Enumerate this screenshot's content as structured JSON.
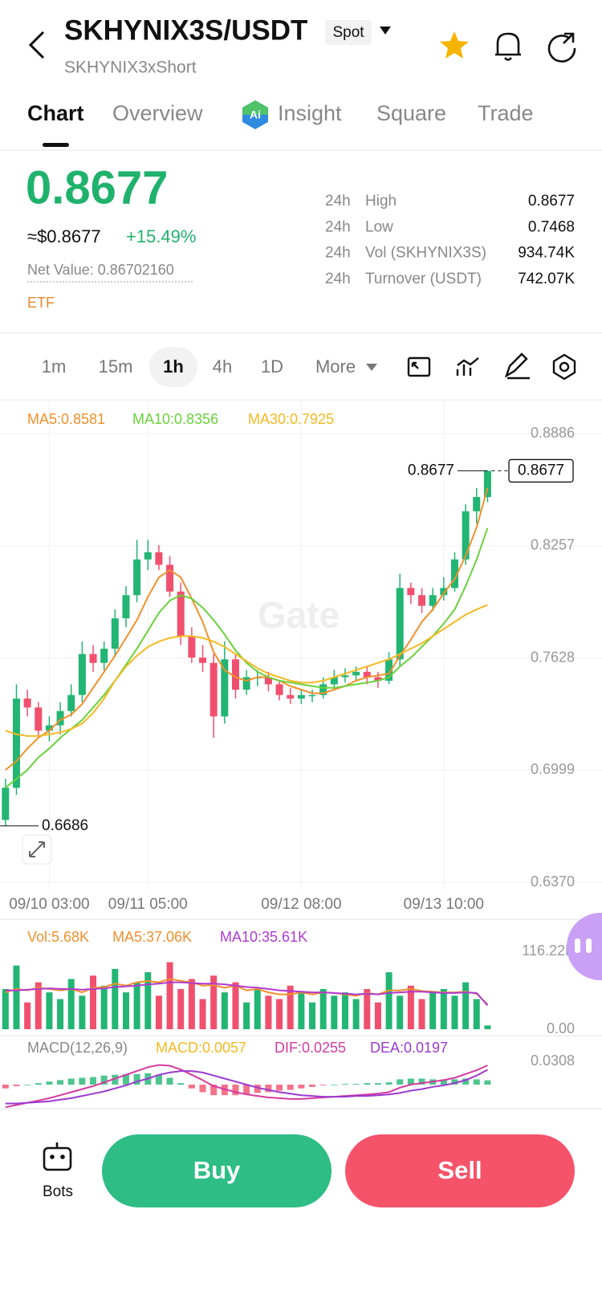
{
  "header": {
    "title": "SKHYNIX3S/USDT",
    "market": "Spot",
    "subtitle": "SKHYNIX3xShort"
  },
  "tabs": [
    "Chart",
    "Overview",
    "Insight",
    "Square",
    "Trade"
  ],
  "price": {
    "last": "0.8677",
    "usd": "≈$0.8677",
    "change": "+15.49%",
    "net_value": "Net Value: 0.86702160",
    "tag": "ETF"
  },
  "stats": [
    {
      "period": "24h",
      "label": "High",
      "value": "0.8677"
    },
    {
      "period": "24h",
      "label": "Low",
      "value": "0.7468"
    },
    {
      "period": "24h",
      "label": "Vol (SKHYNIX3S)",
      "value": "934.74K"
    },
    {
      "period": "24h",
      "label": "Turnover (USDT)",
      "value": "742.07K"
    }
  ],
  "intervals": [
    "1m",
    "15m",
    "1h",
    "4h",
    "1D",
    "More"
  ],
  "chart_data": [
    {
      "type": "candlestick",
      "watermark": "Gate",
      "up_color": "#22b573",
      "down_color": "#f0506e",
      "categories": [
        null,
        null,
        null,
        null,
        "09/10 03:00",
        null,
        null,
        null,
        null,
        null,
        null,
        null,
        null,
        "09/11 05:00",
        null,
        null,
        null,
        null,
        null,
        null,
        null,
        null,
        null,
        null,
        null,
        null,
        null,
        "09/12 08:00",
        null,
        null,
        null,
        null,
        null,
        null,
        null,
        null,
        null,
        null,
        null,
        null,
        "09/13 10:00",
        null,
        null,
        null,
        null
      ],
      "open": [
        0.672,
        0.69,
        0.74,
        0.735,
        0.722,
        0.725,
        0.733,
        0.742,
        0.765,
        0.76,
        0.768,
        0.785,
        0.798,
        0.818,
        0.822,
        0.815,
        0.8,
        0.775,
        0.763,
        0.76,
        0.73,
        0.762,
        0.745,
        0.752,
        0.752,
        0.748,
        0.742,
        0.74,
        0.742,
        0.742,
        0.748,
        0.752,
        0.753,
        0.755,
        0.752,
        0.75,
        0.762,
        0.802,
        0.798,
        0.792,
        0.798,
        0.802,
        0.818,
        0.845,
        0.853
      ],
      "high": [
        0.695,
        0.748,
        0.745,
        0.738,
        0.73,
        0.738,
        0.748,
        0.772,
        0.77,
        0.772,
        0.79,
        0.803,
        0.829,
        0.829,
        0.826,
        0.82,
        0.805,
        0.78,
        0.77,
        0.765,
        0.772,
        0.765,
        0.756,
        0.756,
        0.755,
        0.75,
        0.746,
        0.745,
        0.745,
        0.752,
        0.756,
        0.757,
        0.758,
        0.758,
        0.755,
        0.766,
        0.81,
        0.805,
        0.802,
        0.802,
        0.808,
        0.822,
        0.849,
        0.858,
        0.8677
      ],
      "low": [
        0.6686,
        0.686,
        0.73,
        0.718,
        0.716,
        0.72,
        0.73,
        0.738,
        0.755,
        0.756,
        0.764,
        0.78,
        0.794,
        0.812,
        0.812,
        0.797,
        0.77,
        0.76,
        0.755,
        0.718,
        0.726,
        0.74,
        0.742,
        0.747,
        0.744,
        0.739,
        0.737,
        0.737,
        0.738,
        0.74,
        0.745,
        0.749,
        0.75,
        0.748,
        0.746,
        0.748,
        0.758,
        0.793,
        0.788,
        0.789,
        0.795,
        0.8,
        0.815,
        0.838,
        0.85
      ],
      "close": [
        0.69,
        0.74,
        0.735,
        0.722,
        0.725,
        0.733,
        0.742,
        0.765,
        0.76,
        0.768,
        0.785,
        0.798,
        0.818,
        0.822,
        0.815,
        0.8,
        0.775,
        0.763,
        0.76,
        0.73,
        0.762,
        0.745,
        0.752,
        0.752,
        0.748,
        0.742,
        0.74,
        0.742,
        0.742,
        0.748,
        0.752,
        0.753,
        0.755,
        0.752,
        0.75,
        0.762,
        0.802,
        0.798,
        0.792,
        0.798,
        0.802,
        0.818,
        0.845,
        0.853,
        0.8677
      ],
      "series": [
        {
          "name": "MA5:0.8581",
          "color": "#f0902c",
          "values": [
            0.7,
            0.705,
            0.712,
            0.718,
            0.722,
            0.728,
            0.731,
            0.737,
            0.746,
            0.755,
            0.764,
            0.774,
            0.784,
            0.797,
            0.808,
            0.812,
            0.808,
            0.796,
            0.783,
            0.766,
            0.756,
            0.752,
            0.75,
            0.752,
            0.752,
            0.75,
            0.747,
            0.745,
            0.743,
            0.743,
            0.745,
            0.747,
            0.75,
            0.752,
            0.753,
            0.754,
            0.764,
            0.773,
            0.783,
            0.79,
            0.799,
            0.807,
            0.82,
            0.836,
            0.8581
          ]
        },
        {
          "name": "MA10:0.8356",
          "color": "#6ad13c",
          "values": [
            0.69,
            0.695,
            0.7,
            0.707,
            0.712,
            0.718,
            0.723,
            0.728,
            0.735,
            0.742,
            0.75,
            0.759,
            0.768,
            0.778,
            0.788,
            0.795,
            0.798,
            0.796,
            0.791,
            0.784,
            0.776,
            0.767,
            0.76,
            0.755,
            0.752,
            0.75,
            0.749,
            0.748,
            0.747,
            0.746,
            0.746,
            0.747,
            0.748,
            0.749,
            0.75,
            0.752,
            0.758,
            0.763,
            0.769,
            0.775,
            0.782,
            0.79,
            0.803,
            0.818,
            0.8356
          ]
        },
        {
          "name": "MA30:0.7925",
          "color": "#f5b921",
          "values": [
            0.722,
            0.72,
            0.719,
            0.719,
            0.72,
            0.721,
            0.723,
            0.726,
            0.732,
            0.74,
            0.75,
            0.758,
            0.764,
            0.769,
            0.772,
            0.774,
            0.775,
            0.775,
            0.774,
            0.772,
            0.769,
            0.765,
            0.761,
            0.757,
            0.754,
            0.752,
            0.75,
            0.749,
            0.749,
            0.75,
            0.752,
            0.754,
            0.756,
            0.758,
            0.76,
            0.762,
            0.765,
            0.768,
            0.771,
            0.775,
            0.779,
            0.783,
            0.787,
            0.79,
            0.7925
          ]
        }
      ],
      "ylim": [
        0.637,
        0.8886
      ],
      "yticks": [
        0.8886,
        0.8257,
        0.7628,
        0.6999,
        {
          "value": 0.637,
          "label": "0.6370"
        }
      ],
      "last": 0.8677,
      "max_label": 0.8677,
      "min_label": 0.6686
    },
    {
      "type": "volume",
      "up_color": "#22b573",
      "down_color": "#f0506e",
      "series": [
        {
          "name": "Vol:5.68K",
          "color": "#f0902c",
          "values": [
            60,
            95,
            40,
            70,
            55,
            45,
            75,
            50,
            80,
            65,
            90,
            55,
            70,
            85,
            50,
            100,
            60,
            75,
            45,
            80,
            55,
            70,
            40,
            60,
            50,
            45,
            65,
            55,
            40,
            60,
            50,
            55,
            45,
            60,
            40,
            85,
            50,
            65,
            45,
            55,
            60,
            50,
            70,
            45,
            5.68
          ]
        },
        {
          "name": "MA5:37.06K",
          "color": "#f0902c",
          "values": [
            55,
            60,
            58,
            62,
            60,
            58,
            60,
            55,
            62,
            63,
            68,
            65,
            70,
            72,
            70,
            75,
            72,
            70,
            65,
            66,
            62,
            65,
            58,
            60,
            55,
            52,
            52,
            55,
            52,
            55,
            54,
            52,
            50,
            54,
            52,
            58,
            58,
            60,
            57,
            56,
            55,
            55,
            56,
            53,
            37.06
          ]
        },
        {
          "name": "MA10:35.61K",
          "color": "#b03ad0",
          "values": [
            58,
            58,
            59,
            60,
            61,
            60,
            60,
            59,
            60,
            61,
            63,
            64,
            65,
            67,
            68,
            70,
            70,
            69,
            68,
            68,
            67,
            65,
            63,
            62,
            60,
            58,
            57,
            56,
            55,
            55,
            54,
            53,
            52,
            53,
            52,
            54,
            55,
            56,
            56,
            55,
            54,
            54,
            55,
            54,
            35.61
          ]
        }
      ],
      "ylim": [
        0,
        116.22
      ],
      "yticks": [
        {
          "value": 116.22,
          "label": "116.22K"
        },
        {
          "value": 0,
          "label": "0.00"
        }
      ]
    },
    {
      "type": "macd",
      "title": "MACD(12,26,9)",
      "up_color": "#22b573",
      "down_color": "#f0506e",
      "series": [
        {
          "name": "MACD:0.0057",
          "color": "#f5b921",
          "values": [
            -0.005,
            -0.002,
            0,
            0.002,
            0.004,
            0.006,
            0.008,
            0.009,
            0.01,
            0.012,
            0.013,
            0.014,
            0.014,
            0.015,
            0.013,
            0.009,
            0.002,
            -0.005,
            -0.01,
            -0.014,
            -0.014,
            -0.014,
            -0.013,
            -0.011,
            -0.01,
            -0.008,
            -0.007,
            -0.005,
            -0.003,
            -0.001,
            0,
            0.001,
            0.001,
            0.002,
            0.002,
            0.003,
            0.007,
            0.008,
            0.008,
            0.007,
            0.007,
            0.007,
            0.008,
            0.007,
            0.0057
          ]
        },
        {
          "name": "DIF:0.0255",
          "color": "#d63ba0",
          "values": [
            -0.03,
            -0.027,
            -0.024,
            -0.021,
            -0.018,
            -0.014,
            -0.01,
            -0.006,
            -0.002,
            0.003,
            0.008,
            0.013,
            0.018,
            0.023,
            0.026,
            0.025,
            0.02,
            0.013,
            0.006,
            -0.002,
            -0.006,
            -0.01,
            -0.013,
            -0.015,
            -0.017,
            -0.018,
            -0.019,
            -0.019,
            -0.018,
            -0.017,
            -0.016,
            -0.015,
            -0.014,
            -0.013,
            -0.012,
            -0.01,
            -0.004,
            0,
            0.002,
            0.004,
            0.006,
            0.009,
            0.014,
            0.019,
            0.0255
          ]
        },
        {
          "name": "DEA:0.0197",
          "color": "#9b3ad0",
          "values": [
            -0.025,
            -0.025,
            -0.024,
            -0.023,
            -0.022,
            -0.02,
            -0.018,
            -0.015,
            -0.012,
            -0.009,
            -0.005,
            -0.001,
            0.004,
            0.008,
            0.013,
            0.016,
            0.018,
            0.018,
            0.016,
            0.012,
            0.008,
            0.004,
            0,
            -0.004,
            -0.007,
            -0.01,
            -0.012,
            -0.014,
            -0.015,
            -0.016,
            -0.016,
            -0.016,
            -0.015,
            -0.015,
            -0.014,
            -0.013,
            -0.011,
            -0.008,
            -0.006,
            -0.003,
            -0.001,
            0.002,
            0.006,
            0.012,
            0.0197
          ]
        }
      ],
      "ylim": [
        -0.0308,
        0.0308
      ],
      "yticks": [
        0.0308
      ]
    }
  ],
  "actions": {
    "bots": "Bots",
    "buy": "Buy",
    "sell": "Sell"
  }
}
